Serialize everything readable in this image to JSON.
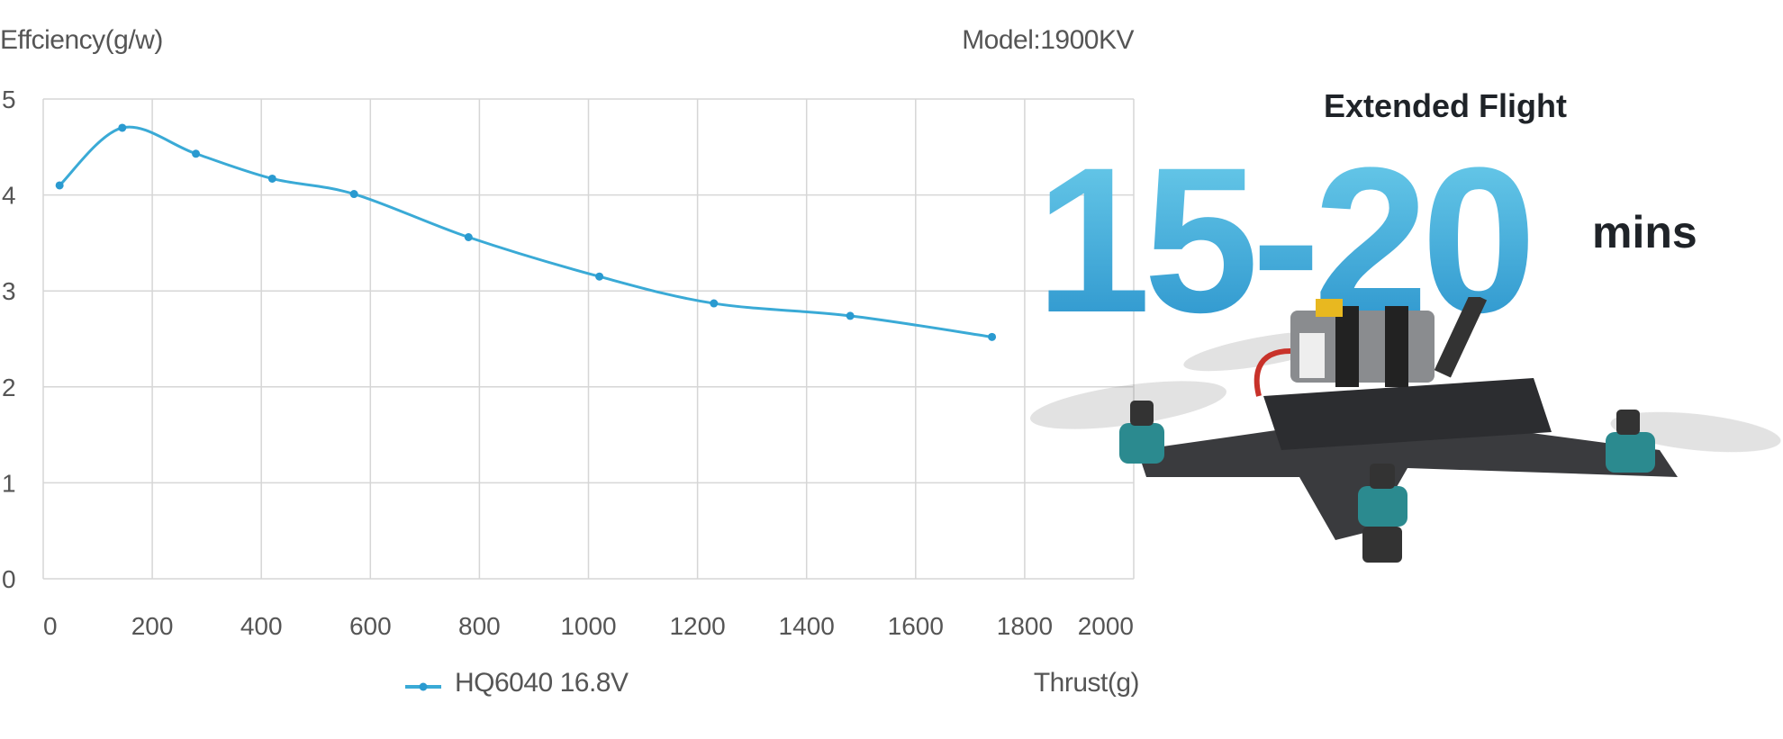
{
  "chart_data": {
    "type": "line",
    "ylabel": "Effciency(g/w)",
    "xlabel": "Thrust(g)",
    "annotation": "Model:1900KV",
    "xlim": [
      0,
      2000
    ],
    "ylim": [
      0,
      5
    ],
    "xticks": [
      "0",
      "200",
      "400",
      "600",
      "800",
      "1000",
      "1200",
      "1400",
      "1600",
      "1800",
      "2000"
    ],
    "yticks": [
      "0",
      "1",
      "2",
      "3",
      "4",
      "5"
    ],
    "grid": true,
    "legend_position": "bottom-center",
    "series": [
      {
        "name": "HQ6040 16.8V",
        "color": "#3aaad6",
        "x": [
          30,
          145,
          280,
          420,
          570,
          780,
          1020,
          1230,
          1480,
          1740
        ],
        "y": [
          4.1,
          4.7,
          4.43,
          4.17,
          4.01,
          3.56,
          3.15,
          2.87,
          2.74,
          2.52
        ]
      }
    ]
  },
  "promo": {
    "title": "Extended Flight",
    "big": "15-20",
    "unit": "mins",
    "accent": "#2a9ad0"
  }
}
